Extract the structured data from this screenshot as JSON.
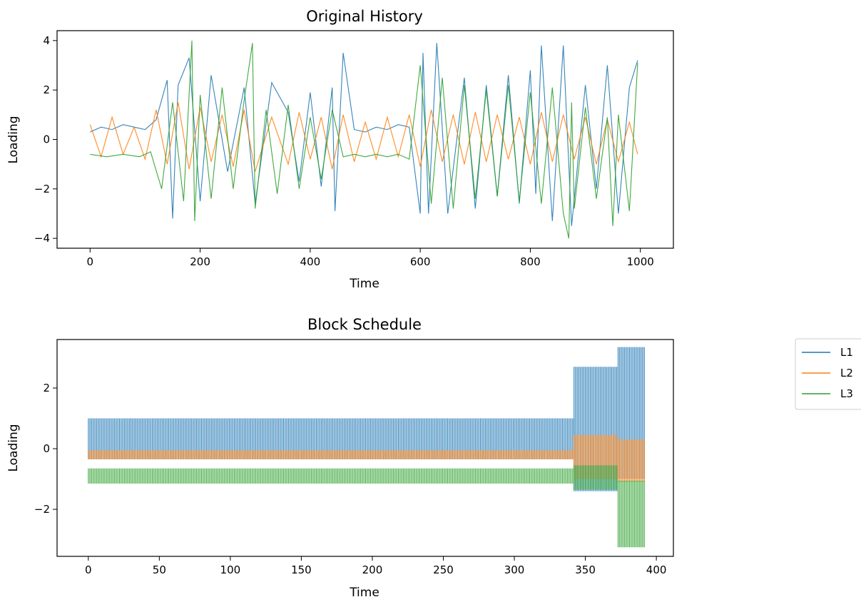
{
  "colors": {
    "L1": "#1f77b4",
    "L2": "#ff7f0e",
    "L3": "#2ca02c"
  },
  "legend": {
    "entries": [
      "L1",
      "L2",
      "L3"
    ],
    "placement": "right of lower chart"
  },
  "chart_data": [
    {
      "type": "line",
      "title": "Original History",
      "xlabel": "Time",
      "ylabel": "Loading",
      "xlim": [
        -60,
        1060
      ],
      "ylim": [
        -4.4,
        4.4
      ],
      "xticks": [
        0,
        200,
        400,
        600,
        800,
        1000
      ],
      "xticklabels": [
        "0",
        "200",
        "400",
        "600",
        "800",
        "1000"
      ],
      "yticks": [
        -4,
        -2,
        0,
        2,
        4
      ],
      "yticklabels": [
        "−4",
        "−2",
        "0",
        "2",
        "4"
      ],
      "grid": false,
      "series": [
        {
          "name": "L1",
          "x": [
            0,
            20,
            40,
            60,
            80,
            100,
            120,
            140,
            150,
            160,
            180,
            200,
            220,
            250,
            280,
            300,
            330,
            360,
            380,
            400,
            420,
            440,
            445,
            460,
            480,
            500,
            520,
            540,
            560,
            580,
            600,
            605,
            615,
            630,
            650,
            680,
            700,
            720,
            740,
            760,
            780,
            800,
            810,
            820,
            840,
            860,
            875,
            900,
            920,
            940,
            960,
            980,
            995
          ],
          "y": [
            0.3,
            0.5,
            0.4,
            0.6,
            0.5,
            0.4,
            0.8,
            2.4,
            -3.2,
            2.2,
            3.3,
            -2.5,
            2.6,
            -1.3,
            2.1,
            -2.6,
            2.3,
            1.1,
            -1.7,
            1.9,
            -1.9,
            2.1,
            -2.9,
            3.5,
            0.4,
            0.3,
            0.5,
            0.4,
            0.6,
            0.5,
            -3.0,
            3.5,
            -3.0,
            3.9,
            -3.0,
            2.5,
            -2.8,
            2.2,
            -2.3,
            2.6,
            -2.6,
            2.8,
            -2.2,
            3.8,
            -3.3,
            3.8,
            -3.5,
            2.2,
            -2.0,
            3.0,
            -3.0,
            2.1,
            3.2
          ]
        },
        {
          "name": "L2",
          "x": [
            0,
            20,
            40,
            60,
            80,
            100,
            120,
            140,
            160,
            180,
            200,
            220,
            240,
            260,
            280,
            300,
            330,
            360,
            380,
            400,
            420,
            440,
            460,
            480,
            500,
            520,
            540,
            560,
            580,
            600,
            620,
            640,
            660,
            680,
            700,
            720,
            740,
            760,
            780,
            800,
            820,
            840,
            860,
            880,
            900,
            920,
            940,
            960,
            980,
            995
          ],
          "y": [
            0.6,
            -0.7,
            0.9,
            -0.6,
            0.5,
            -0.8,
            1.2,
            -1.0,
            1.5,
            -1.2,
            1.3,
            -0.9,
            1.0,
            -1.1,
            1.2,
            -1.3,
            0.9,
            -1.0,
            1.1,
            -0.8,
            0.9,
            -1.2,
            1.0,
            -0.9,
            0.7,
            -0.8,
            0.9,
            -0.7,
            1.0,
            -1.1,
            1.2,
            -0.9,
            1.0,
            -1.0,
            1.1,
            -0.9,
            1.0,
            -0.8,
            0.9,
            -1.0,
            1.1,
            -0.9,
            1.0,
            -0.8,
            0.9,
            -1.0,
            0.8,
            -0.9,
            0.7,
            -0.6
          ]
        },
        {
          "name": "L3",
          "x": [
            0,
            30,
            60,
            90,
            110,
            130,
            150,
            170,
            185,
            190,
            200,
            220,
            240,
            260,
            280,
            295,
            300,
            320,
            340,
            360,
            380,
            400,
            420,
            440,
            460,
            480,
            500,
            520,
            540,
            560,
            580,
            600,
            620,
            640,
            660,
            680,
            700,
            720,
            740,
            760,
            780,
            800,
            820,
            840,
            860,
            870,
            875,
            880,
            900,
            920,
            940,
            950,
            960,
            980,
            995
          ],
          "y": [
            -0.6,
            -0.7,
            -0.6,
            -0.7,
            -0.5,
            -2.0,
            1.5,
            -2.5,
            4.0,
            -3.3,
            1.8,
            -2.4,
            2.1,
            -2.0,
            1.6,
            3.9,
            -2.8,
            1.2,
            -2.2,
            1.4,
            -2.0,
            0.9,
            -1.6,
            1.2,
            -0.7,
            -0.6,
            -0.7,
            -0.6,
            -0.7,
            -0.6,
            -0.8,
            3.0,
            -2.6,
            2.5,
            -2.8,
            2.2,
            -2.4,
            2.0,
            -2.3,
            2.2,
            -2.5,
            1.9,
            -2.6,
            2.1,
            -3.0,
            -4.0,
            1.5,
            -2.8,
            1.3,
            -2.4,
            0.9,
            -3.5,
            1.0,
            -2.9,
            3.1
          ]
        }
      ]
    },
    {
      "type": "line",
      "title": "Block Schedule",
      "xlabel": "Time",
      "ylabel": "Loading",
      "xlim": [
        -22,
        412
      ],
      "ylim": [
        -3.55,
        3.6
      ],
      "xticks": [
        0,
        50,
        100,
        150,
        200,
        250,
        300,
        350,
        400
      ],
      "xticklabels": [
        "0",
        "50",
        "100",
        "150",
        "200",
        "250",
        "300",
        "350",
        "400"
      ],
      "yticks": [
        -2,
        0,
        2
      ],
      "yticklabels": [
        "−2",
        "0",
        "2"
      ],
      "grid": false,
      "series": [
        {
          "name": "L1",
          "blocks": [
            {
              "x": [
                0,
                342
              ],
              "low": -0.35,
              "high": 1.0
            },
            {
              "x": [
                342,
                373
              ],
              "low": -1.4,
              "high": 2.7
            },
            {
              "x": [
                373,
                392
              ],
              "low": -1.0,
              "high": 3.35
            }
          ]
        },
        {
          "name": "L2",
          "blocks": [
            {
              "x": [
                0,
                342
              ],
              "low": -0.35,
              "high": -0.05
            },
            {
              "x": [
                342,
                373
              ],
              "low": -1.0,
              "high": 0.45
            },
            {
              "x": [
                373,
                392
              ],
              "low": -1.1,
              "high": 0.3
            }
          ]
        },
        {
          "name": "L3",
          "blocks": [
            {
              "x": [
                0,
                342
              ],
              "low": -1.15,
              "high": -0.65
            },
            {
              "x": [
                342,
                373
              ],
              "low": -1.35,
              "high": -0.55
            },
            {
              "x": [
                373,
                392
              ],
              "low": -3.25,
              "high": -1.05
            }
          ]
        }
      ]
    }
  ]
}
